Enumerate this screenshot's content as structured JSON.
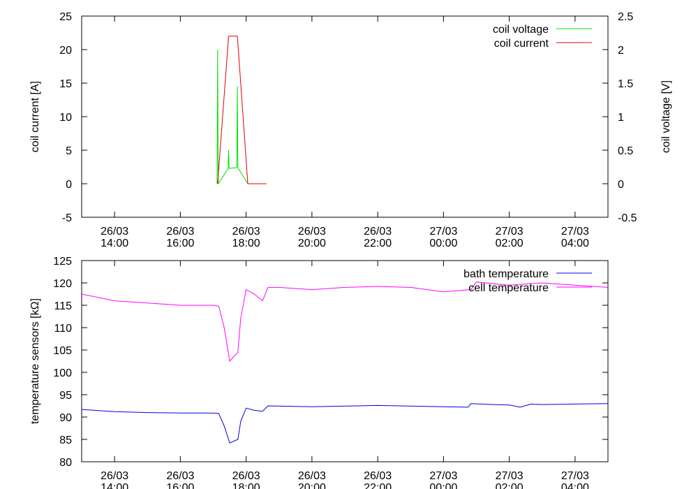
{
  "chart_data": [
    {
      "type": "line",
      "ylabel": "coil current [A]",
      "y2label": "coil voltage [V]",
      "xlim": [
        "26/03 13:00",
        "27/03 05:00"
      ],
      "xticks": [
        "26/03 14:00",
        "26/03 16:00",
        "26/03 18:00",
        "26/03 20:00",
        "26/03 22:00",
        "27/03 00:00",
        "27/03 02:00",
        "27/03 04:00"
      ],
      "ylim": [
        -5,
        25
      ],
      "yticks": [
        -5,
        0,
        5,
        10,
        15,
        20,
        25
      ],
      "y2lim": [
        -0.5,
        2.5
      ],
      "y2ticks": [
        -0.5,
        0,
        0.5,
        1,
        1.5,
        2,
        2.5
      ],
      "legend": "upper right",
      "series": [
        {
          "name": "coil voltage",
          "color": "#00e000",
          "axis": "y2",
          "x": [
            "26/03 17:07",
            "26/03 17:08",
            "26/03 17:09",
            "26/03 17:27",
            "26/03 17:28",
            "26/03 17:29",
            "26/03 17:43",
            "26/03 17:44",
            "26/03 17:45",
            "26/03 18:03",
            "26/03 18:37"
          ],
          "values": [
            0,
            2.0,
            0,
            0.22,
            0.5,
            0.23,
            0.24,
            1.45,
            0.24,
            0,
            0
          ]
        },
        {
          "name": "coil current",
          "color": "#e00000",
          "x": [
            "26/03 17:08",
            "26/03 17:28",
            "26/03 17:44",
            "26/03 18:03",
            "26/03 18:37"
          ],
          "values": [
            0,
            22,
            22,
            0,
            0
          ]
        }
      ]
    },
    {
      "type": "line",
      "ylabel": "temperature sensors [kΩ]",
      "xlim": [
        "26/03 13:00",
        "27/03 05:00"
      ],
      "xticks": [
        "26/03 14:00",
        "26/03 16:00",
        "26/03 18:00",
        "26/03 20:00",
        "26/03 22:00",
        "27/03 00:00",
        "27/03 02:00",
        "27/03 04:00"
      ],
      "ylim": [
        80,
        125
      ],
      "yticks": [
        80,
        85,
        90,
        95,
        100,
        105,
        110,
        115,
        120,
        125
      ],
      "legend": "upper right",
      "series": [
        {
          "name": "bath temperature",
          "color": "#0000e0",
          "x": [
            "26/03 13:00",
            "26/03 14:00",
            "26/03 15:00",
            "26/03 16:00",
            "26/03 17:00",
            "26/03 17:10",
            "26/03 17:20",
            "26/03 17:30",
            "26/03 17:45",
            "26/03 17:50",
            "26/03 18:00",
            "26/03 18:15",
            "26/03 18:30",
            "26/03 18:40",
            "26/03 20:00",
            "26/03 22:00",
            "27/03 00:00",
            "27/03 00:45",
            "27/03 00:50",
            "27/03 01:30",
            "27/03 02:00",
            "27/03 02:20",
            "27/03 02:40",
            "27/03 03:00",
            "27/03 04:00",
            "27/03 05:00"
          ],
          "values": [
            91.7,
            91.2,
            91,
            90.9,
            90.9,
            90.8,
            88,
            84.2,
            85,
            89,
            92,
            91.5,
            91.3,
            92.5,
            92.3,
            92.6,
            92.3,
            92.2,
            93,
            92.8,
            92.7,
            92.2,
            92.9,
            92.8,
            92.9,
            93
          ]
        },
        {
          "name": "cell temperature",
          "color": "#ff00ff",
          "x": [
            "26/03 13:00",
            "26/03 14:00",
            "26/03 15:00",
            "26/03 16:00",
            "26/03 17:00",
            "26/03 17:10",
            "26/03 17:20",
            "26/03 17:30",
            "26/03 17:45",
            "26/03 17:50",
            "26/03 18:00",
            "26/03 18:15",
            "26/03 18:30",
            "26/03 18:40",
            "26/03 19:00",
            "26/03 20:00",
            "26/03 21:00",
            "26/03 22:00",
            "26/03 23:00",
            "27/03 00:00",
            "27/03 00:50",
            "27/03 01:00",
            "27/03 02:00",
            "27/03 03:00",
            "27/03 04:00",
            "27/03 05:00"
          ],
          "values": [
            117.5,
            116,
            115.5,
            115,
            115,
            114.8,
            110,
            102.5,
            104.5,
            112,
            118.5,
            117.5,
            116,
            119,
            119,
            118.5,
            119,
            119.2,
            119,
            118,
            118.5,
            120.2,
            119.5,
            120,
            119.5,
            119
          ]
        }
      ]
    }
  ]
}
